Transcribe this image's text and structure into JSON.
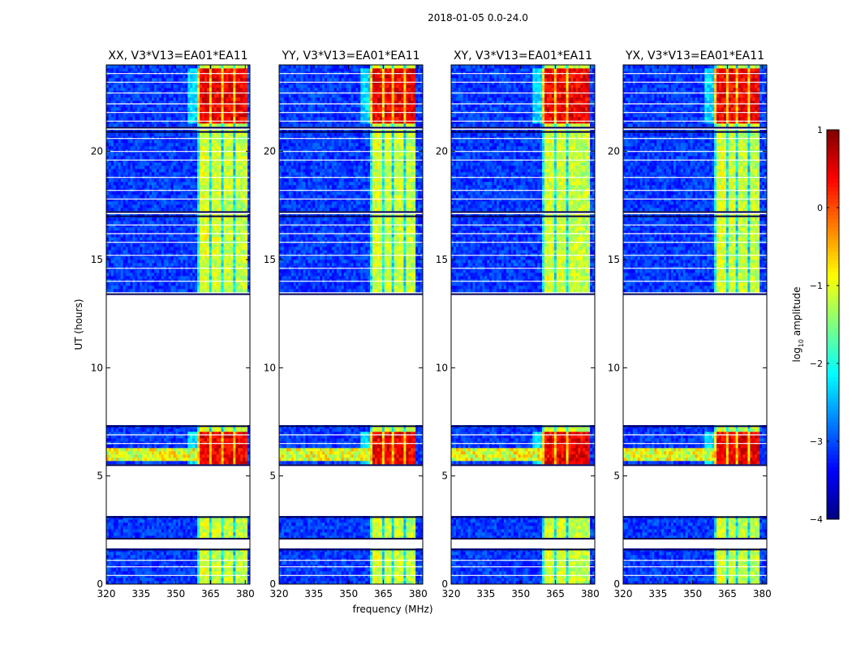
{
  "chart_data": {
    "type": "heatmap",
    "title": "2018-01-05 0.0-24.0",
    "xlabel": "frequency (MHz)",
    "ylabel": "UT (hours)",
    "xlim": [
      320,
      382
    ],
    "ylim": [
      0,
      24
    ],
    "xticks": [
      320,
      335,
      350,
      365,
      380
    ],
    "yticks": [
      0,
      5,
      10,
      15,
      20
    ],
    "panels": [
      {
        "title": "XX, V3*V13=EA01*EA11",
        "band_freq": [
          359,
          380
        ]
      },
      {
        "title": "YY, V3*V13=EA01*EA11",
        "band_freq": [
          359,
          378
        ]
      },
      {
        "title": "XY, V3*V13=EA01*EA11",
        "band_freq": [
          359,
          379
        ]
      },
      {
        "title": "YX, V3*V13=EA01*EA11",
        "band_freq": [
          359,
          378
        ]
      }
    ],
    "colorbar": {
      "label": "log10 amplitude",
      "label_main": "log",
      "label_sub": "10",
      "label_rest": " amplitude",
      "range": [
        -4,
        1
      ],
      "ticks": [
        -4,
        -3,
        -2,
        -1,
        0,
        1
      ],
      "colormap": "jet"
    },
    "data_segments_hours": [
      [
        0.0,
        1.6
      ],
      [
        2.1,
        3.1
      ],
      [
        5.5,
        7.3
      ],
      [
        13.4,
        17.0
      ],
      [
        17.2,
        20.9
      ],
      [
        21.1,
        24.0
      ]
    ],
    "gap_hours": [
      7.3,
      13.4
    ],
    "strong_periods_hours": [
      [
        4.8,
        7.0
      ],
      [
        21.2,
        23.8
      ]
    ],
    "colors": {
      "background_low": "#0000b4",
      "band_moderate": "#80ff80",
      "band_strong": "#c80000"
    }
  }
}
